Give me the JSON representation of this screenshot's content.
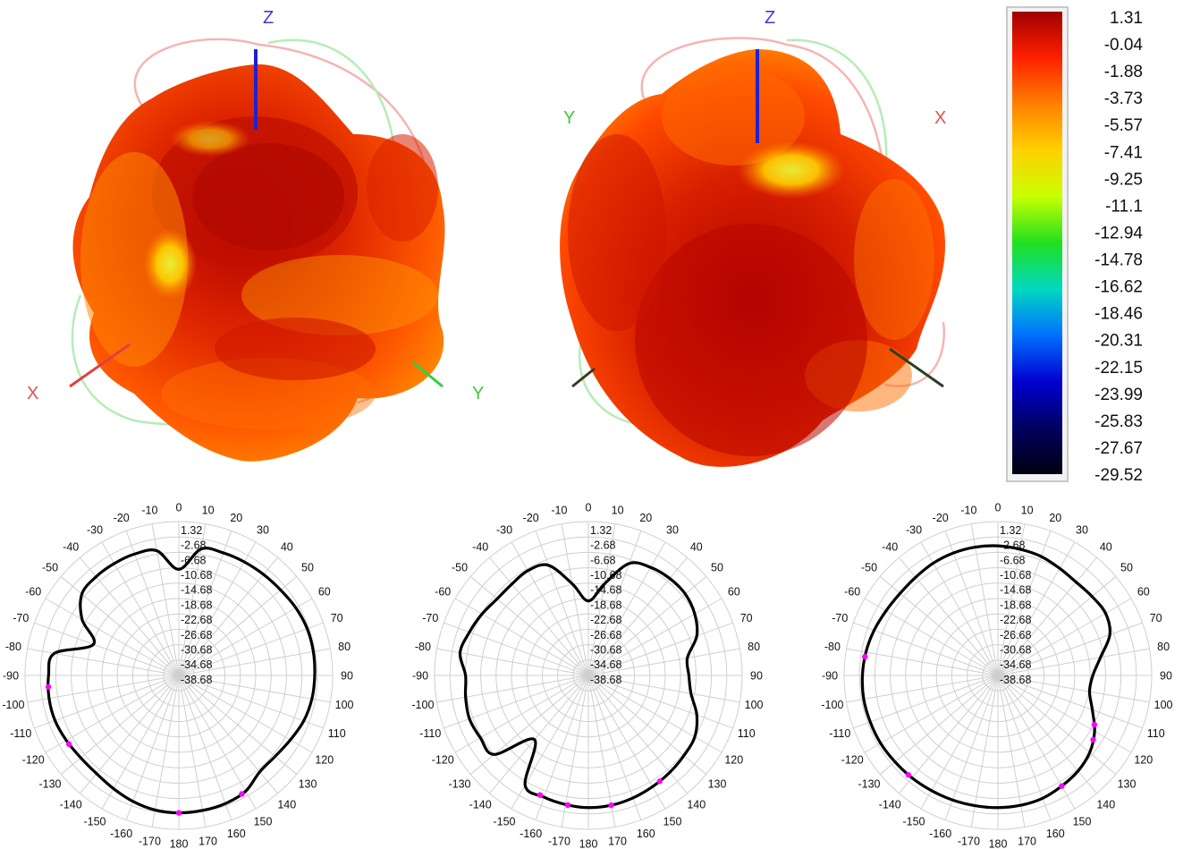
{
  "colors": {
    "pattern_dark": "#a80000",
    "pattern_mid": "#e52a00",
    "pattern_light": "#ff7a00",
    "pattern_hot": "#ffd000",
    "x_axis": "#e04040",
    "y_axis": "#3fd24a",
    "z_axis": "#2a2ad0",
    "trace": "#000000",
    "marker": "#ff00ff",
    "grid": "#cfcfcf"
  },
  "view_left": {
    "axis_labels": {
      "x": "X",
      "y": "Y",
      "z": "Z"
    }
  },
  "view_right": {
    "axis_labels": {
      "x": "X",
      "y": "Y",
      "z": "Z"
    }
  },
  "colorbar": {
    "labels": [
      "1.31",
      "-0.04",
      "-1.88",
      "-3.73",
      "-5.57",
      "-7.41",
      "-9.25",
      "-11.1",
      "-12.94",
      "-14.78",
      "-16.62",
      "-18.46",
      "-20.31",
      "-22.15",
      "-23.99",
      "-25.83",
      "-27.67",
      "-29.52"
    ],
    "stops": [
      "#a00000",
      "#ff2000",
      "#ff8000",
      "#ffd000",
      "#c8ff00",
      "#20e020",
      "#00d8c0",
      "#0070ff",
      "#0000d0",
      "#000060",
      "#000010"
    ]
  },
  "chart_data": [
    {
      "type": "polar",
      "name": "",
      "angle_ticks": [
        "0",
        "10",
        "20",
        "30",
        "40",
        "50",
        "60",
        "70",
        "80",
        "90",
        "100",
        "110",
        "120",
        "130",
        "140",
        "150",
        "160",
        "170",
        "180",
        "-170",
        "-160",
        "-150",
        "-140",
        "-130",
        "-120",
        "-110",
        "-100",
        "-90",
        "-80",
        "-70",
        "-60",
        "-50",
        "-40",
        "-30",
        "-20",
        "-10"
      ],
      "radial_labels": [
        "1.32",
        "-2.68",
        "-6.68",
        "-10.68",
        "-14.68",
        "-18.68",
        "-22.68",
        "-26.68",
        "-30.68",
        "-34.68",
        "-38.68"
      ],
      "rlim": [
        -40,
        1.32
      ],
      "angles": [
        0,
        10,
        20,
        30,
        40,
        50,
        60,
        70,
        80,
        90,
        100,
        110,
        120,
        130,
        140,
        150,
        160,
        170,
        180,
        -170,
        -160,
        -150,
        -140,
        -130,
        -120,
        -110,
        -100,
        -90,
        -80,
        -70,
        -60,
        -50,
        -40,
        -30,
        -20,
        -10
      ],
      "values": [
        -11.5,
        -5.5,
        -5.0,
        -4.8,
        -4.6,
        -4.3,
        -3.7,
        -3.3,
        -3.3,
        -3.5,
        -3.7,
        -4.3,
        -5.4,
        -6.2,
        -6.2,
        -4.1,
        -3.4,
        -3.2,
        -3.1,
        -3.3,
        -4.0,
        -4.9,
        -5.6,
        -5.6,
        -5.1,
        -4.6,
        -4.6,
        -5.0,
        -6.0,
        -15.6,
        -10.0,
        -6.0,
        -5.4,
        -5.3,
        -5.3,
        -6.0
      ],
      "markers_deg": [
        -95,
        -122,
        180,
        152
      ]
    },
    {
      "type": "polar",
      "name": "",
      "angle_ticks": [
        "0",
        "10",
        "20",
        "30",
        "40",
        "50",
        "60",
        "70",
        "80",
        "90",
        "100",
        "110",
        "120",
        "130",
        "140",
        "150",
        "160",
        "170",
        "180",
        "-170",
        "-160",
        "-150",
        "-140",
        "-130",
        "-120",
        "-110",
        "-100",
        "-90",
        "-80",
        "-70",
        "-60",
        "-50",
        "-40",
        "-30",
        "-20",
        "-10"
      ],
      "radial_labels": [
        "1.32",
        "-2.68",
        "-6.68",
        "-10.68",
        "-14.68",
        "-18.68",
        "-22.68",
        "-26.68",
        "-30.68",
        "-34.68",
        "-38.68"
      ],
      "rlim": [
        -40,
        1.32
      ],
      "angles": [
        0,
        10,
        20,
        30,
        40,
        50,
        60,
        70,
        80,
        90,
        100,
        110,
        120,
        130,
        140,
        150,
        160,
        170,
        180,
        -170,
        -160,
        -150,
        -140,
        -130,
        -120,
        -110,
        -100,
        -90,
        -80,
        -70,
        -60,
        -50,
        -40,
        -30,
        -20,
        -10
      ],
      "values": [
        -20.0,
        -15.0,
        -8.0,
        -6.5,
        -6.0,
        -6.0,
        -7.0,
        -9.0,
        -13.0,
        -13.0,
        -12.0,
        -9.0,
        -7.0,
        -6.5,
        -6.0,
        -5.5,
        -5.0,
        -4.6,
        -4.5,
        -4.8,
        -5.2,
        -6.0,
        -17.5,
        -7.0,
        -6.5,
        -6.0,
        -6.5,
        -7.0,
        -5.0,
        -6.0,
        -7.0,
        -8.0,
        -8.0,
        -7.5,
        -8.5,
        -15.0
      ],
      "markers_deg": [
        -158,
        -171,
        170,
        146
      ]
    },
    {
      "type": "polar",
      "name": "",
      "angle_ticks": [
        "0",
        "10",
        "20",
        "30",
        "40",
        "50",
        "60",
        "70",
        "80",
        "90",
        "100",
        "110",
        "120",
        "130",
        "140",
        "150",
        "160",
        "170",
        "180",
        "-170",
        "-160",
        "-150",
        "-140",
        "-130",
        "-120",
        "-110",
        "-100",
        "-90",
        "-80",
        "-70",
        "-60",
        "-50",
        "-40",
        "-30",
        "-20",
        "-10"
      ],
      "radial_labels": [
        "1.32",
        "-2.68",
        "-6.68",
        "-10.68",
        "-14.68",
        "-18.68",
        "-22.68",
        "-26.68",
        "-30.68",
        "-34.68",
        "-38.68"
      ],
      "rlim": [
        -40,
        1.32
      ],
      "angles": [
        0,
        10,
        20,
        30,
        40,
        50,
        60,
        70,
        80,
        90,
        100,
        110,
        120,
        130,
        140,
        150,
        160,
        170,
        180,
        -170,
        -160,
        -150,
        -140,
        -130,
        -120,
        -110,
        -100,
        -90,
        -80,
        -70,
        -60,
        -50,
        -40,
        -30,
        -20,
        -10
      ],
      "values": [
        -5.2,
        -5.6,
        -6.0,
        -6.8,
        -7.3,
        -7.0,
        -6.6,
        -8.0,
        -12.0,
        -14.5,
        -15.0,
        -13.0,
        -10.0,
        -7.8,
        -6.5,
        -5.7,
        -4.9,
        -4.6,
        -4.5,
        -4.5,
        -4.4,
        -4.3,
        -4.1,
        -3.9,
        -3.6,
        -3.5,
        -3.4,
        -3.6,
        -4.0,
        -4.6,
        -5.3,
        -5.7,
        -5.6,
        -5.2,
        -5.0,
        -5.0
      ],
      "markers_deg": [
        -82,
        -138,
        150,
        117,
        124
      ]
    }
  ]
}
